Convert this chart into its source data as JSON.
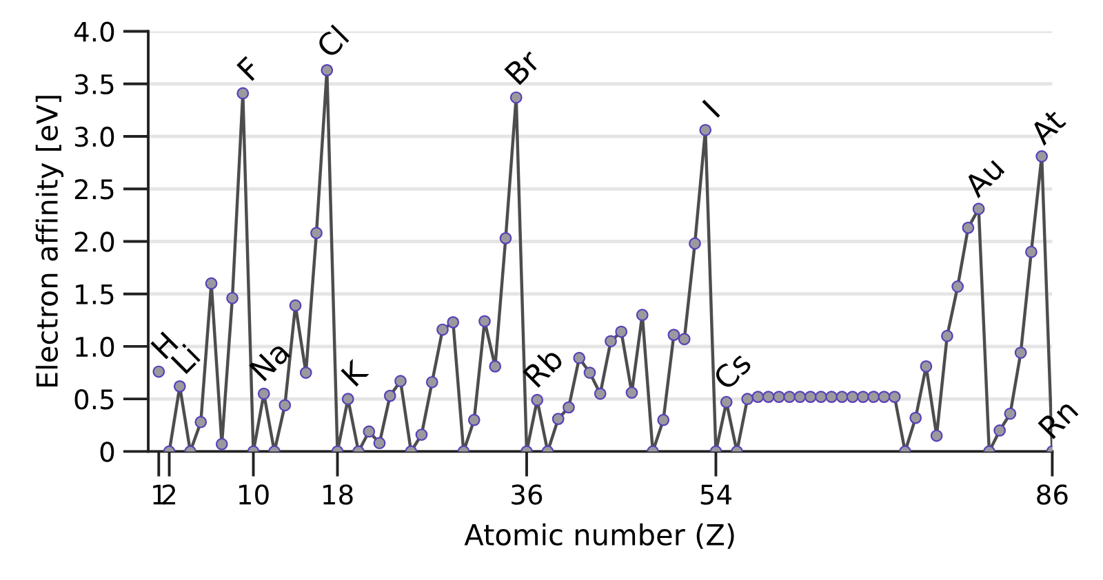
{
  "chart_data": {
    "type": "line",
    "xlabel": "Atomic number (Z)",
    "ylabel": "Electron affinity [eV]",
    "xlim": [
      0,
      86
    ],
    "xticks": [
      1,
      2,
      10,
      18,
      36,
      54,
      86
    ],
    "ylim": [
      0,
      4.0
    ],
    "yticks": [
      0,
      0.5,
      {
        "value": 1,
        "label": "1.0"
      },
      1.5,
      {
        "value": 2,
        "label": "2.0"
      },
      2.5,
      {
        "value": 3,
        "label": "3.0"
      },
      3.5,
      {
        "value": 4,
        "label": "4.0"
      }
    ],
    "grid": "y",
    "marker": "circle",
    "line_style": "solid",
    "series": [
      {
        "type": "scatter",
        "color": "#9a9a9e",
        "x": [
          1
        ],
        "values": [
          0.76
        ]
      },
      {
        "color": "#4d4d4d",
        "x": [
          2,
          3,
          4,
          5,
          6,
          7,
          8,
          9,
          10,
          11,
          12,
          13,
          14,
          15,
          16,
          17,
          18,
          19,
          20,
          21,
          22,
          23,
          24,
          25,
          26,
          27,
          28,
          29,
          30,
          31,
          32,
          33,
          34,
          35,
          36,
          37,
          38,
          39,
          40,
          41,
          42,
          43,
          44,
          45,
          46,
          47,
          48,
          49,
          50,
          51,
          52,
          53,
          54,
          55,
          56,
          57,
          58,
          59,
          60,
          61,
          62,
          63,
          64,
          65,
          66,
          67,
          68,
          69,
          70,
          71,
          72,
          73,
          74,
          75,
          76,
          77,
          78,
          79,
          80,
          81,
          82,
          83,
          84,
          85,
          86
        ],
        "values": [
          0,
          0.62,
          0,
          0.28,
          1.6,
          0.07,
          1.46,
          3.41,
          0,
          0.55,
          0,
          0.44,
          1.39,
          0.75,
          2.08,
          3.63,
          0,
          0.5,
          0,
          0.19,
          0.08,
          0.53,
          0.67,
          0,
          0.16,
          0.66,
          1.16,
          1.23,
          0,
          0.3,
          1.24,
          0.81,
          2.03,
          3.37,
          0,
          0.49,
          0,
          0.31,
          0.42,
          0.89,
          0.75,
          0.55,
          1.05,
          1.14,
          0.56,
          1.3,
          0,
          0.3,
          1.11,
          1.07,
          1.98,
          3.06,
          0,
          0.47,
          0,
          0.5,
          0.52,
          0.52,
          0.52,
          0.52,
          0.52,
          0.52,
          0.52,
          0.52,
          0.52,
          0.52,
          0.52,
          0.52,
          0.52,
          0.52,
          0,
          0.32,
          0.81,
          0.15,
          1.1,
          1.57,
          2.13,
          2.31,
          0,
          0.2,
          0.36,
          0.94,
          1.9,
          2.81,
          0
        ]
      }
    ],
    "annotations": [
      {
        "text": "H",
        "x": 1,
        "y": 0.76
      },
      {
        "text": "Li",
        "x": 3,
        "y": 0.62
      },
      {
        "text": "F",
        "x": 9,
        "y": 3.41
      },
      {
        "text": "Na",
        "x": 11,
        "y": 0.55
      },
      {
        "text": "Cl",
        "x": 17,
        "y": 3.63
      },
      {
        "text": "K",
        "x": 19,
        "y": 0.5
      },
      {
        "text": "Br",
        "x": 35,
        "y": 3.37
      },
      {
        "text": "Rb",
        "x": 37,
        "y": 0.49
      },
      {
        "text": "I",
        "x": 53,
        "y": 3.06
      },
      {
        "text": "Cs",
        "x": 55,
        "y": 0.47
      },
      {
        "text": "Au",
        "x": 79,
        "y": 2.31
      },
      {
        "text": "At",
        "x": 85,
        "y": 2.81
      },
      {
        "text": "Rn",
        "x": 86,
        "y": 0
      }
    ]
  }
}
